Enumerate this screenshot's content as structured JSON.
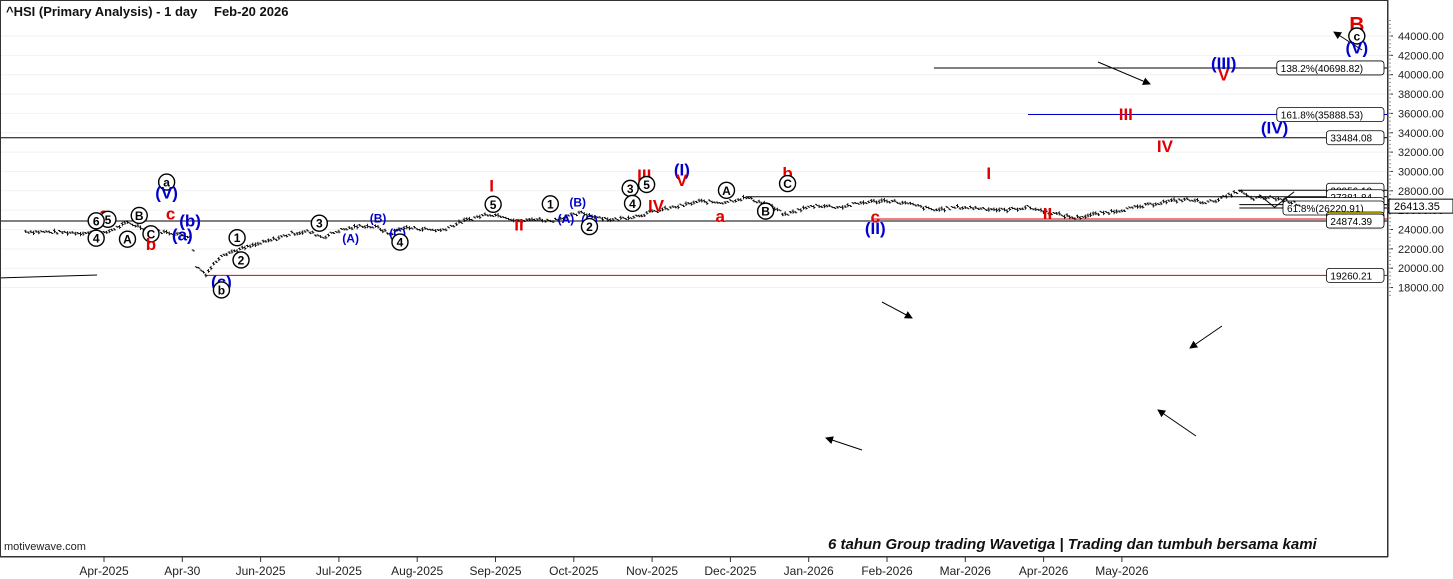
{
  "header": {
    "title": "^HSI (Primary Analysis) - 1 day",
    "date": "Feb-20 2026"
  },
  "footer": {
    "tagline": "6 tahun Group trading Wavetiga | Trading dan tumbuh bersama kami",
    "brand": "motivewave.com"
  },
  "colors": {
    "red": "#e00000",
    "blue": "#0000cc",
    "black": "#000000",
    "highlight": "#ffee00",
    "grid": "#cccccc"
  },
  "chart_data": {
    "type": "ohlc",
    "title": "^HSI (Primary Analysis) - 1 day",
    "x_ticks": [
      "Apr-2025",
      "Apr-30",
      "Jun-2025",
      "Jul-2025",
      "Aug-2025",
      "Sep-2025",
      "Oct-2025",
      "Nov-2025",
      "Dec-2025",
      "Jan-2026",
      "Feb-2026",
      "Mar-2026",
      "Apr-2026",
      "May-2026"
    ],
    "y_ticks": [
      18000,
      20000,
      22000,
      24000,
      26000,
      28000,
      30000,
      32000,
      34000,
      36000,
      38000,
      40000,
      42000,
      44000
    ],
    "y_tick_labels": [
      "18000.00",
      "20000.00",
      "22000.00",
      "24000.00",
      "26000.00",
      "28000.00",
      "30000.00",
      "32000.00",
      "34000.00",
      "36000.00",
      "38000.00",
      "40000.00",
      "42000.00",
      "44000.00"
    ],
    "ylim": [
      17200,
      45900
    ],
    "price_path": [
      [
        -1,
        23800
      ],
      [
        0,
        23600
      ],
      [
        0.3,
        24700
      ],
      [
        0.6,
        23900
      ],
      [
        0.9,
        23600
      ],
      [
        1.1,
        23300
      ],
      [
        1.18,
        20200
      ],
      [
        1.3,
        19400
      ],
      [
        1.5,
        21400
      ],
      [
        1.8,
        22100
      ],
      [
        2.1,
        22800
      ],
      [
        2.4,
        23600
      ],
      [
        2.6,
        23800
      ],
      [
        2.8,
        23200
      ],
      [
        3.0,
        23900
      ],
      [
        3.3,
        24400
      ],
      [
        3.5,
        24200
      ],
      [
        3.65,
        23500
      ],
      [
        3.8,
        24200
      ],
      [
        4.0,
        24100
      ],
      [
        4.3,
        23900
      ],
      [
        4.6,
        24900
      ],
      [
        4.9,
        25600
      ],
      [
        5.1,
        25400
      ],
      [
        5.3,
        24800
      ],
      [
        5.5,
        25100
      ],
      [
        5.7,
        24900
      ],
      [
        5.9,
        25300
      ],
      [
        6.1,
        25700
      ],
      [
        6.3,
        25300
      ],
      [
        6.5,
        25000
      ],
      [
        6.8,
        25400
      ],
      [
        7.1,
        26000
      ],
      [
        7.4,
        26500
      ],
      [
        7.6,
        26900
      ],
      [
        7.9,
        26800
      ],
      [
        8.2,
        27300
      ],
      [
        8.5,
        26500
      ],
      [
        8.7,
        25500
      ],
      [
        8.9,
        26100
      ],
      [
        9.1,
        26500
      ],
      [
        9.4,
        26300
      ],
      [
        9.7,
        26800
      ],
      [
        10.0,
        27000
      ],
      [
        10.3,
        26600
      ],
      [
        10.6,
        26000
      ],
      [
        10.9,
        26300
      ],
      [
        11.2,
        26200
      ],
      [
        11.5,
        26000
      ],
      [
        11.8,
        26300
      ],
      [
        12.1,
        25700
      ],
      [
        12.4,
        25200
      ],
      [
        12.6,
        25500
      ],
      [
        12.9,
        25900
      ],
      [
        13.2,
        26300
      ],
      [
        13.5,
        26800
      ],
      [
        13.8,
        27100
      ],
      [
        14.1,
        26800
      ],
      [
        14.3,
        27300
      ],
      [
        14.5,
        28000
      ],
      [
        14.65,
        27200
      ],
      [
        14.9,
        27300
      ],
      [
        15.1,
        27000
      ],
      [
        15.3,
        26500
      ]
    ],
    "horizontal_levels": [
      {
        "label": "138.2%(40698.82)",
        "value": 40698.82,
        "x_start": 10.6,
        "color": "black"
      },
      {
        "label": "161.8%(35888.53)",
        "value": 35888.53,
        "x_start": 11.8,
        "color": "blue"
      },
      {
        "label": "33484.08",
        "value": 33484.08,
        "x_start": -1,
        "color": "black"
      },
      {
        "label": "28056.10",
        "value": 28056.1,
        "x_start": 14.5,
        "color": "black"
      },
      {
        "label": "27381.84",
        "value": 27381.84,
        "x_start": 8.2,
        "color": "black"
      },
      {
        "label": "50.0%(26571.22)",
        "value": 26571.22,
        "x_start": 14.5,
        "color": "black"
      },
      {
        "label": "61.8%(26220.91)",
        "value": 26220.91,
        "x_start": 14.5,
        "color": "black"
      },
      {
        "label": "25086.54",
        "value": 25086.54,
        "x_start": 9.8,
        "color": "red"
      },
      {
        "label": "24874.39",
        "value": 24874.39,
        "x_start": -1,
        "color": "black"
      },
      {
        "label": "19260.21",
        "value": 19260.21,
        "x_start": 1.3,
        "color": "red"
      }
    ],
    "last_price": "26413.35",
    "wave_labels": [
      {
        "t": "a",
        "x": 0.0,
        "y": 25650,
        "c": "red",
        "s": "plain"
      },
      {
        "t": "5",
        "x": 0.05,
        "y": 25050,
        "c": "black",
        "s": "circle"
      },
      {
        "t": "6",
        "x": -0.1,
        "y": 24900,
        "c": "black",
        "s": "circle"
      },
      {
        "t": "B",
        "x": 0.45,
        "y": 25450,
        "c": "black",
        "s": "circle"
      },
      {
        "t": "c",
        "x": 0.85,
        "y": 25650,
        "c": "red",
        "s": "plain"
      },
      {
        "t": "(b)",
        "x": 1.1,
        "y": 24900,
        "c": "blue",
        "s": "plain"
      },
      {
        "t": "a",
        "x": 0.8,
        "y": 28900,
        "c": "black",
        "s": "circle"
      },
      {
        "t": "(V)",
        "x": 0.8,
        "y": 27800,
        "c": "blue",
        "s": "plain"
      },
      {
        "t": "C",
        "x": 0.6,
        "y": 23550,
        "c": "black",
        "s": "circle"
      },
      {
        "t": "(a)",
        "x": 1.0,
        "y": 23500,
        "c": "blue",
        "s": "plain"
      },
      {
        "t": "4",
        "x": -0.1,
        "y": 23100,
        "c": "black",
        "s": "circle"
      },
      {
        "t": "A",
        "x": 0.3,
        "y": 23000,
        "c": "black",
        "s": "circle"
      },
      {
        "t": "b",
        "x": 0.6,
        "y": 22500,
        "c": "red",
        "s": "plain"
      },
      {
        "t": "1",
        "x": 1.7,
        "y": 23150,
        "c": "black",
        "s": "circle"
      },
      {
        "t": "2",
        "x": 1.75,
        "y": 20850,
        "c": "black",
        "s": "circle"
      },
      {
        "t": "(c)",
        "x": 1.5,
        "y": 18600,
        "c": "blue",
        "s": "plain"
      },
      {
        "t": "b",
        "x": 1.5,
        "y": 17750,
        "c": "black",
        "s": "circle"
      },
      {
        "t": "3",
        "x": 2.75,
        "y": 24650,
        "c": "black",
        "s": "circle"
      },
      {
        "t": "(A)",
        "x": 3.15,
        "y": 23100,
        "c": "blue",
        "s": "plain",
        "sm": 1
      },
      {
        "t": "(B)",
        "x": 3.5,
        "y": 25150,
        "c": "blue",
        "s": "plain",
        "sm": 1
      },
      {
        "t": "(C)",
        "x": 3.75,
        "y": 23600,
        "c": "blue",
        "s": "plain",
        "sm": 1
      },
      {
        "t": "4",
        "x": 3.78,
        "y": 22700,
        "c": "black",
        "s": "circle"
      },
      {
        "t": "I",
        "x": 4.95,
        "y": 28550,
        "c": "red",
        "s": "plain"
      },
      {
        "t": "5",
        "x": 4.97,
        "y": 26600,
        "c": "black",
        "s": "circle"
      },
      {
        "t": "II",
        "x": 5.3,
        "y": 24500,
        "c": "red",
        "s": "plain"
      },
      {
        "t": "1",
        "x": 5.7,
        "y": 26650,
        "c": "black",
        "s": "circle"
      },
      {
        "t": "(B)",
        "x": 6.05,
        "y": 26800,
        "c": "blue",
        "s": "plain",
        "sm": 1
      },
      {
        "t": "(A)",
        "x": 5.9,
        "y": 25100,
        "c": "blue",
        "s": "plain",
        "sm": 1
      },
      {
        "t": "(C)",
        "x": 6.2,
        "y": 25000,
        "c": "blue",
        "s": "plain",
        "sm": 1
      },
      {
        "t": "2",
        "x": 6.2,
        "y": 24300,
        "c": "black",
        "s": "circle"
      },
      {
        "t": "III",
        "x": 6.9,
        "y": 29650,
        "c": "red",
        "s": "plain"
      },
      {
        "t": "3",
        "x": 6.72,
        "y": 28250,
        "c": "black",
        "s": "circle"
      },
      {
        "t": "5",
        "x": 6.93,
        "y": 28650,
        "c": "black",
        "s": "circle"
      },
      {
        "t": "4",
        "x": 6.75,
        "y": 26700,
        "c": "black",
        "s": "circle"
      },
      {
        "t": "IV",
        "x": 7.05,
        "y": 26450,
        "c": "red",
        "s": "plain"
      },
      {
        "t": "(I)",
        "x": 7.38,
        "y": 30200,
        "c": "blue",
        "s": "plain"
      },
      {
        "t": "V",
        "x": 7.38,
        "y": 29100,
        "c": "red",
        "s": "plain"
      },
      {
        "t": "A",
        "x": 7.95,
        "y": 28050,
        "c": "black",
        "s": "circle"
      },
      {
        "t": "a",
        "x": 7.87,
        "y": 25400,
        "c": "red",
        "s": "plain"
      },
      {
        "t": "b",
        "x": 8.73,
        "y": 29850,
        "c": "red",
        "s": "plain"
      },
      {
        "t": "C",
        "x": 8.73,
        "y": 28750,
        "c": "black",
        "s": "circle"
      },
      {
        "t": "B",
        "x": 8.45,
        "y": 25900,
        "c": "black",
        "s": "circle"
      },
      {
        "t": "c",
        "x": 9.85,
        "y": 25350,
        "c": "red",
        "s": "plain"
      },
      {
        "t": "(II)",
        "x": 9.85,
        "y": 24150,
        "c": "blue",
        "s": "plain"
      },
      {
        "t": "I",
        "x": 11.3,
        "y": 29850,
        "c": "red",
        "s": "plain"
      },
      {
        "t": "II",
        "x": 12.05,
        "y": 25650,
        "c": "red",
        "s": "plain"
      },
      {
        "t": "III",
        "x": 13.05,
        "y": 35950,
        "c": "red",
        "s": "plain"
      },
      {
        "t": "IV",
        "x": 13.55,
        "y": 32650,
        "c": "red",
        "s": "plain"
      },
      {
        "t": "(IV)",
        "x": 14.95,
        "y": 34550,
        "c": "blue",
        "s": "plain"
      },
      {
        "t": "(III)",
        "x": 14.3,
        "y": 41200,
        "c": "blue",
        "s": "plain"
      },
      {
        "t": "V",
        "x": 14.3,
        "y": 40000,
        "c": "red",
        "s": "plain"
      },
      {
        "t": "B",
        "x": 16.0,
        "y": 45200,
        "c": "red",
        "s": "plain",
        "big": 1
      },
      {
        "t": "c",
        "x": 16.0,
        "y": 44000,
        "c": "black",
        "s": "circle"
      },
      {
        "t": "(V)",
        "x": 16.0,
        "y": 42800,
        "c": "blue",
        "s": "plain"
      }
    ]
  }
}
